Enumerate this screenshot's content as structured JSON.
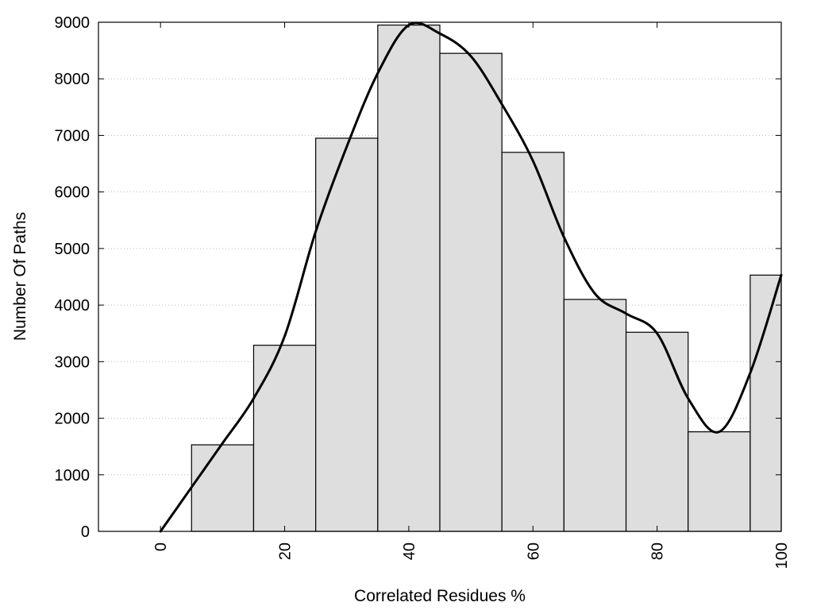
{
  "chart_data": {
    "type": "bar",
    "xlabel": "Correlated Residues %",
    "ylabel": "Number Of Paths",
    "xlim": [
      -10,
      100
    ],
    "ylim": [
      0,
      9000
    ],
    "x_ticks": [
      0,
      20,
      40,
      60,
      80,
      100
    ],
    "y_ticks": [
      0,
      1000,
      2000,
      3000,
      4000,
      5000,
      6000,
      7000,
      8000,
      9000
    ],
    "grid": "horizontal dotted",
    "bar_color": "#dedede",
    "bin_width": 10,
    "bins": [
      {
        "x": 10,
        "value": 1530
      },
      {
        "x": 20,
        "value": 3290
      },
      {
        "x": 30,
        "value": 6950
      },
      {
        "x": 40,
        "value": 8950
      },
      {
        "x": 50,
        "value": 8450
      },
      {
        "x": 60,
        "value": 6700
      },
      {
        "x": 70,
        "value": 4100
      },
      {
        "x": 80,
        "value": 3520
      },
      {
        "x": 90,
        "value": 1760
      },
      {
        "x": 100,
        "value": 4530
      }
    ],
    "curve": {
      "x": [
        0,
        5,
        10,
        15,
        20,
        25,
        30,
        35,
        40,
        45,
        50,
        55,
        60,
        65,
        70,
        75,
        80,
        85,
        90,
        95,
        100
      ],
      "y": [
        0,
        780,
        1560,
        2350,
        3450,
        5300,
        6800,
        8100,
        8950,
        8800,
        8400,
        7550,
        6550,
        5200,
        4200,
        3850,
        3500,
        2350,
        1760,
        2800,
        4530
      ]
    }
  }
}
